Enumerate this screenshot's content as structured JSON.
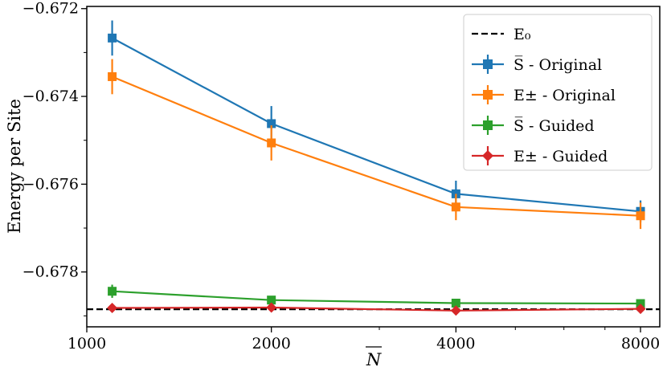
{
  "chart_data": {
    "type": "line",
    "xscale": "log",
    "xlabel": "N",
    "ylabel": "Energy per Site",
    "xlim": [
      1000,
      8600
    ],
    "ylim": [
      -0.67925,
      -0.67195
    ],
    "xticks": [
      1000,
      2000,
      4000,
      8000
    ],
    "xtick_labels": [
      "1000",
      "2000",
      "4000",
      "8000"
    ],
    "yticks": [
      -0.672,
      -0.674,
      -0.676,
      -0.678
    ],
    "ytick_labels": [
      "−0.672",
      "−0.674",
      "−0.676",
      "−0.678"
    ],
    "grid": false,
    "legend_position": "top-right",
    "reference_line": {
      "name": "E₀",
      "value": -0.67885,
      "color": "#000000",
      "style": "dashed"
    },
    "series": [
      {
        "name": "S̅  - Original",
        "color": "#1f77b4",
        "marker": "square",
        "x": [
          1100,
          2000,
          4000,
          8000
        ],
        "y": [
          -0.67267,
          -0.67462,
          -0.67622,
          -0.67662
        ],
        "yerr": [
          0.0004,
          0.0004,
          0.0003,
          0.00025
        ]
      },
      {
        "name": "E± - Original",
        "color": "#ff7f0e",
        "marker": "square",
        "x": [
          1100,
          2000,
          4000,
          8000
        ],
        "y": [
          -0.67355,
          -0.67506,
          -0.67652,
          -0.67672
        ],
        "yerr": [
          0.0004,
          0.0004,
          0.0003,
          0.0003
        ]
      },
      {
        "name": "S̅  - Guided",
        "color": "#2ca02c",
        "marker": "square",
        "x": [
          1100,
          2000,
          4000,
          8000
        ],
        "y": [
          -0.67844,
          -0.67864,
          -0.67871,
          -0.67872
        ],
        "yerr": [
          0.00015,
          8e-05,
          5e-05,
          5e-05
        ]
      },
      {
        "name": "E± - Guided",
        "color": "#d62728",
        "marker": "diamond",
        "x": [
          1100,
          2000,
          4000,
          8000
        ],
        "y": [
          -0.67882,
          -0.67881,
          -0.67888,
          -0.67884
        ],
        "yerr": [
          8e-05,
          8e-05,
          8e-05,
          8e-05
        ]
      }
    ]
  }
}
